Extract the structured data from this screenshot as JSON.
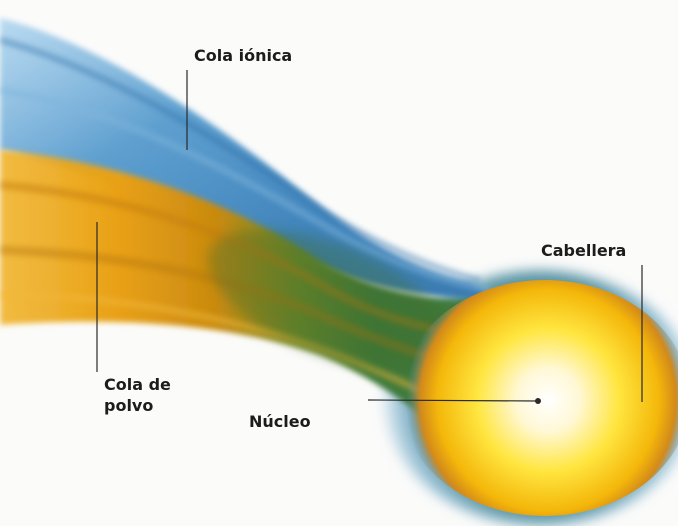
{
  "diagram": {
    "labels": {
      "ion_tail": "Cola iónica",
      "coma": "Cabellera",
      "dust_tail_line1": "Cola de",
      "dust_tail_line2": "polvo",
      "nucleus": "Núcleo"
    },
    "colors": {
      "ion_tail": "#4f93c4",
      "dust_tail": "#e39a12",
      "coma_core": "#fff7d2",
      "coma_outer": "#f2b50c",
      "blend_green": "#4b7a30",
      "leader_line": "#2a2a2a"
    }
  }
}
